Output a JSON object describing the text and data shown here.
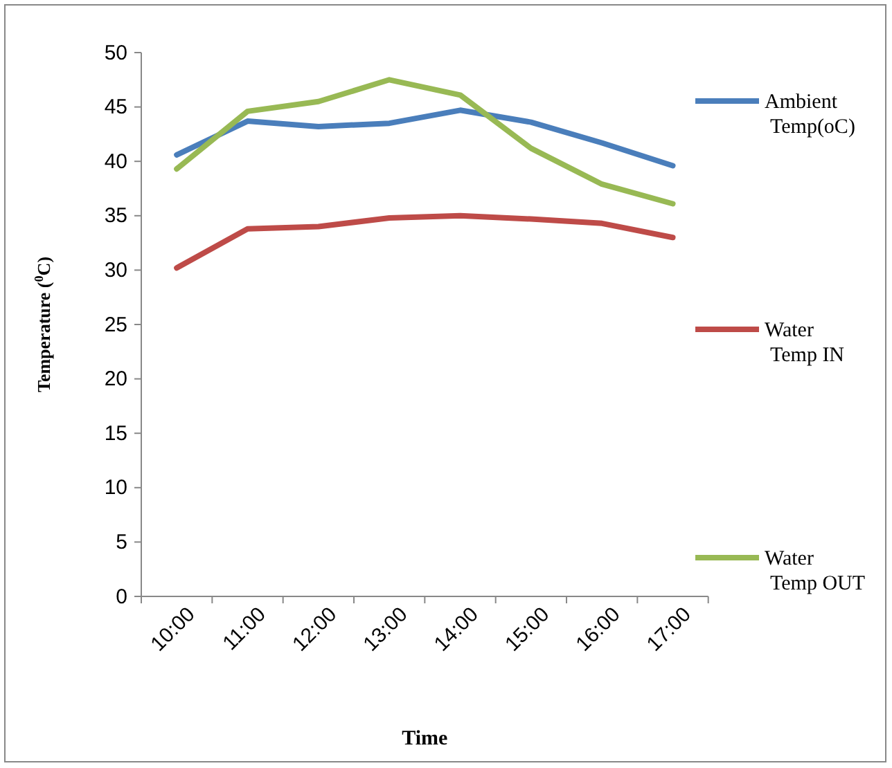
{
  "chart_data": {
    "type": "line",
    "xlabel": "Time",
    "ylabel": "Temperature ($^{0}$C)",
    "categories": [
      "10:00",
      "11:00",
      "12:00",
      "13:00",
      "14:00",
      "15:00",
      "16:00",
      "17:00"
    ],
    "ylim": [
      0,
      50
    ],
    "yticks": [
      0,
      5,
      10,
      15,
      20,
      25,
      30,
      35,
      40,
      45,
      50
    ],
    "grid": false,
    "legend": "right",
    "line_style": "solid",
    "marker": "none",
    "series": [
      {
        "name": "Ambient Temp(oC)",
        "color": "#4a7ebb",
        "values": [
          40.6,
          43.7,
          43.2,
          43.5,
          44.7,
          43.6,
          41.7,
          39.6
        ]
      },
      {
        "name": "Water Temp IN",
        "color": "#be4b48",
        "values": [
          30.2,
          33.8,
          34.0,
          34.8,
          35.0,
          34.7,
          34.3,
          33.0
        ]
      },
      {
        "name": "Water Temp OUT",
        "color": "#98b954",
        "values": [
          39.3,
          44.6,
          45.5,
          47.5,
          46.1,
          41.2,
          37.9,
          36.1
        ]
      }
    ]
  }
}
